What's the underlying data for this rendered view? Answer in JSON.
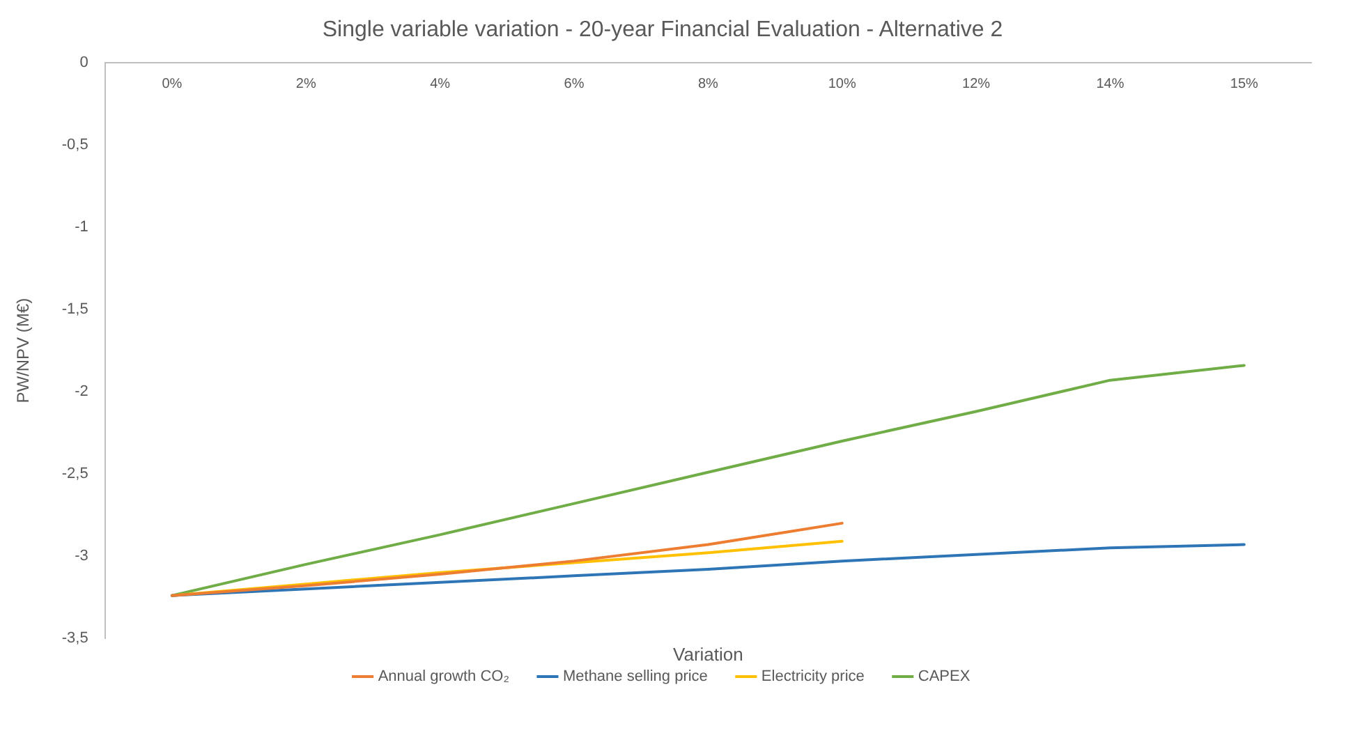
{
  "chart_data": {
    "type": "line",
    "title": "Single variable variation - 20-year Financial Evaluation - Alternative 2",
    "xlabel": "Variation",
    "ylabel": "PW/NPV (M€)",
    "categories": [
      "0%",
      "2%",
      "4%",
      "6%",
      "8%",
      "10%",
      "12%",
      "14%",
      "15%"
    ],
    "series": [
      {
        "name": "Annual growth CO₂",
        "color": "#ed7d31",
        "values": [
          -3.24,
          -3.18,
          -3.11,
          -3.03,
          -2.93,
          -2.8,
          null,
          null,
          null
        ]
      },
      {
        "name": "Methane selling price",
        "color": "#2e75b6",
        "values": [
          -3.24,
          -3.2,
          -3.16,
          -3.12,
          -3.08,
          -3.03,
          -2.99,
          -2.95,
          -2.93
        ]
      },
      {
        "name": "Electricity price",
        "color": "#ffc000",
        "values": [
          -3.24,
          -3.17,
          -3.1,
          -3.04,
          -2.98,
          -2.91,
          null,
          null,
          null
        ]
      },
      {
        "name": "CAPEX",
        "color": "#70ad47",
        "values": [
          -3.24,
          -3.05,
          -2.87,
          -2.68,
          -2.49,
          -2.3,
          -2.12,
          -1.93,
          -1.84
        ]
      }
    ],
    "ylim": [
      -3.5,
      0
    ],
    "yticks": [
      {
        "value": 0,
        "label": "0"
      },
      {
        "value": -0.5,
        "label": "-0,5"
      },
      {
        "value": -1,
        "label": "-1"
      },
      {
        "value": -1.5,
        "label": "-1,5"
      },
      {
        "value": -2,
        "label": "-2"
      },
      {
        "value": -2.5,
        "label": "-2,5"
      },
      {
        "value": -3,
        "label": "-3"
      },
      {
        "value": -3.5,
        "label": "-3,5"
      }
    ],
    "grid": false,
    "legend": "bottom",
    "marker": "none",
    "line_style": "solid"
  }
}
